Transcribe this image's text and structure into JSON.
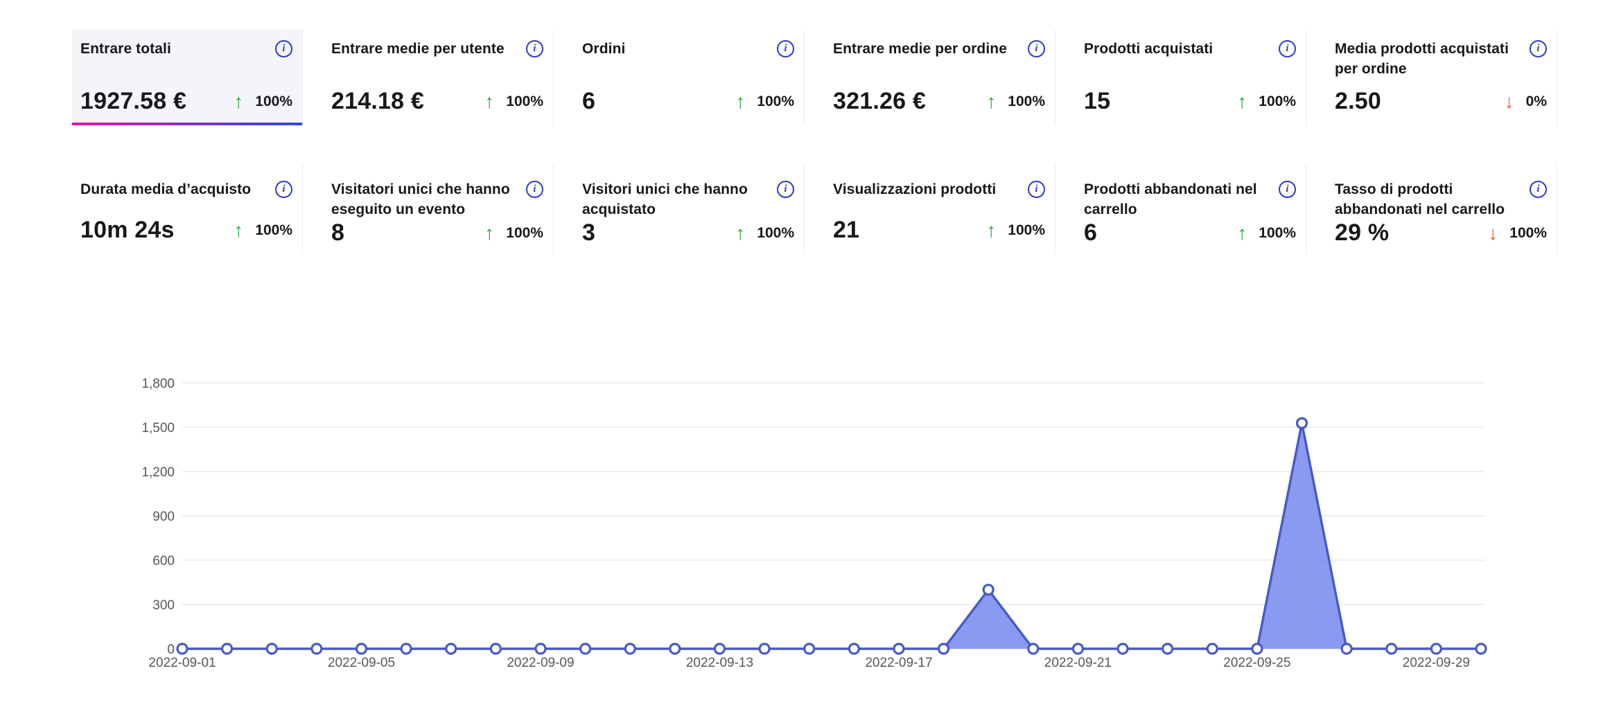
{
  "colors": {
    "text": "#17181c",
    "axis_text": "#54565c",
    "divider": "#e9eaef",
    "selected_card_bg": "#f4f5f9",
    "selected_underline_from": "#e812a6",
    "selected_underline_to": "#2b49e0",
    "info_icon": "#2e3cc2",
    "delta_up": "#23a83c",
    "delta_down": "#e2603e",
    "chart_line": "#4659c8",
    "chart_fill": "rgba(88,111,233,0.70)",
    "chart_grid": "#e9eaef",
    "marker_fill": "#ffffff"
  },
  "icons": {
    "info": "i",
    "up_arrow": "↑",
    "down_arrow": "↓"
  },
  "metrics": {
    "rows": [
      [
        {
          "title": "Entrare totali",
          "value": "1927.58 €",
          "delta_direction": "up",
          "delta_pct": "100%",
          "selected": true
        },
        {
          "title": "Entrare medie per utente",
          "value": "214.18 €",
          "delta_direction": "up",
          "delta_pct": "100%",
          "selected": false
        },
        {
          "title": "Ordini",
          "value": "6",
          "delta_direction": "up",
          "delta_pct": "100%",
          "selected": false
        },
        {
          "title": "Entrare medie per ordine",
          "value": "321.26 €",
          "delta_direction": "up",
          "delta_pct": "100%",
          "selected": false
        },
        {
          "title": "Prodotti acquistati",
          "value": "15",
          "delta_direction": "up",
          "delta_pct": "100%",
          "selected": false
        },
        {
          "title": "Media prodotti acquistati\nper ordine",
          "value": "2.50",
          "delta_direction": "down",
          "delta_pct": "0%",
          "selected": false
        }
      ],
      [
        {
          "title": "Durata media d’acquisto",
          "value": "10m 24s",
          "delta_direction": "up",
          "delta_pct": "100%",
          "selected": false
        },
        {
          "title": "Visitatori unici che hanno\neseguito un evento",
          "value": "8",
          "delta_direction": "up",
          "delta_pct": "100%",
          "selected": false
        },
        {
          "title": "Visitori unici che hanno\nacquistato",
          "value": "3",
          "delta_direction": "up",
          "delta_pct": "100%",
          "selected": false
        },
        {
          "title": "Visualizzazioni prodotti",
          "value": "21",
          "delta_direction": "up",
          "delta_pct": "100%",
          "selected": false
        },
        {
          "title": "Prodotti abbandonati nel\ncarrello",
          "value": "6",
          "delta_direction": "up",
          "delta_pct": "100%",
          "selected": false
        },
        {
          "title": "Tasso di prodotti\nabbandonati nel carrello",
          "value": "29 %",
          "delta_direction": "down",
          "delta_pct": "100%",
          "selected": false
        }
      ]
    ]
  },
  "chart_data": {
    "type": "area",
    "title": "",
    "xlabel": "",
    "ylabel": "",
    "x": [
      "2022-09-01",
      "2022-09-02",
      "2022-09-03",
      "2022-09-04",
      "2022-09-05",
      "2022-09-06",
      "2022-09-07",
      "2022-09-08",
      "2022-09-09",
      "2022-09-10",
      "2022-09-11",
      "2022-09-12",
      "2022-09-13",
      "2022-09-14",
      "2022-09-15",
      "2022-09-16",
      "2022-09-17",
      "2022-09-18",
      "2022-09-19",
      "2022-09-20",
      "2022-09-21",
      "2022-09-22",
      "2022-09-23",
      "2022-09-24",
      "2022-09-25",
      "2022-09-26",
      "2022-09-27",
      "2022-09-28",
      "2022-09-29",
      "2022-09-30"
    ],
    "values": [
      0,
      0,
      0,
      0,
      0,
      0,
      0,
      0,
      0,
      0,
      0,
      0,
      0,
      0,
      0,
      0,
      0,
      0,
      400,
      0,
      0,
      0,
      0,
      0,
      0,
      1527.58,
      0,
      0,
      0,
      0
    ],
    "x_tick_labels": [
      "2022-09-01",
      "2022-09-05",
      "2022-09-09",
      "2022-09-13",
      "2022-09-17",
      "2022-09-21",
      "2022-09-25",
      "2022-09-29"
    ],
    "y_ticks": [
      0,
      300,
      600,
      900,
      1200,
      1500,
      1800
    ],
    "y_tick_labels": [
      "0",
      "300",
      "600",
      "900",
      "1,200",
      "1,500",
      "1,800"
    ],
    "ylim": [
      0,
      1800
    ],
    "grid": true,
    "legend": false,
    "marker": "open-circle"
  }
}
